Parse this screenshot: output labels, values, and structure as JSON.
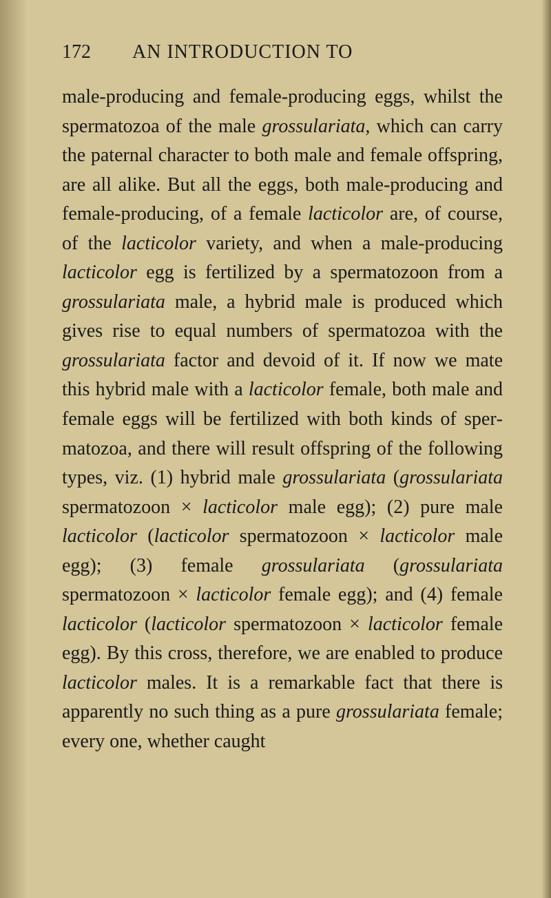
{
  "page": {
    "number": "172",
    "running_title": "AN INTRODUCTION TO"
  },
  "body": {
    "segments": [
      {
        "t": "male-producing and female-producing eggs, whilst the spermatozoa of the male ",
        "i": false
      },
      {
        "t": "grossu­lariata,",
        "i": true
      },
      {
        "t": " which can carry the paternal character to both male and female offspring, are all alike. But all the eggs, both male-producing and female-producing, of a female ",
        "i": false
      },
      {
        "t": "lacticolor",
        "i": true
      },
      {
        "t": " are, of course, of the ",
        "i": false
      },
      {
        "t": "lacticolor",
        "i": true
      },
      {
        "t": " variety, and when a male-producing ",
        "i": false
      },
      {
        "t": "lacticolor",
        "i": true
      },
      {
        "t": " egg is fertilized by a spermatozoon from a ",
        "i": false
      },
      {
        "t": "grossu­lariata",
        "i": true
      },
      {
        "t": " male, a hybrid male is produced which gives rise to equal numbers of spermatozoa with the ",
        "i": false
      },
      {
        "t": "grossulariata",
        "i": true
      },
      {
        "t": " factor and devoid of it. If now we mate this hybrid male with a ",
        "i": false
      },
      {
        "t": "lacticolor",
        "i": true
      },
      {
        "t": " female, both male and female eggs will be fertilized with both kinds of sper­matozoa, and there will result offspring of the following types, viz. (1) hybrid male ",
        "i": false
      },
      {
        "t": "grossu­lariata",
        "i": true
      },
      {
        "t": " (",
        "i": false
      },
      {
        "t": "grossulariata",
        "i": true
      },
      {
        "t": " spermatozoon × ",
        "i": false
      },
      {
        "t": "lacti­color",
        "i": true
      },
      {
        "t": " male egg); (2) pure male ",
        "i": false
      },
      {
        "t": "lacticolor",
        "i": true
      },
      {
        "t": " (",
        "i": false
      },
      {
        "t": "lacticolor",
        "i": true
      },
      {
        "t": " spermatozoon × ",
        "i": false
      },
      {
        "t": "lacticolor",
        "i": true
      },
      {
        "t": " male egg); (3) female ",
        "i": false
      },
      {
        "t": "grossulariata",
        "i": true
      },
      {
        "t": " (",
        "i": false
      },
      {
        "t": "grossulariata",
        "i": true
      },
      {
        "t": " spermatozoon × ",
        "i": false
      },
      {
        "t": "lacticolor",
        "i": true
      },
      {
        "t": " female egg); and (4) female ",
        "i": false
      },
      {
        "t": "lacticolor",
        "i": true
      },
      {
        "t": " (",
        "i": false
      },
      {
        "t": "lacticolor",
        "i": true
      },
      {
        "t": " spermato­zoon × ",
        "i": false
      },
      {
        "t": "lacticolor",
        "i": true
      },
      {
        "t": " female egg). By this cross, therefore, we are enabled to produce ",
        "i": false
      },
      {
        "t": "lacticolor",
        "i": true
      },
      {
        "t": " males. It is a remarkable fact that there is apparently no such thing as a pure ",
        "i": false
      },
      {
        "t": "grossu­lariata",
        "i": true
      },
      {
        "t": " female; every one, whether caught",
        "i": false
      }
    ]
  },
  "style": {
    "background_color": "#d4c699",
    "text_color": "#1a1a1a",
    "font_size_pt": 28,
    "line_height": 1.52
  }
}
